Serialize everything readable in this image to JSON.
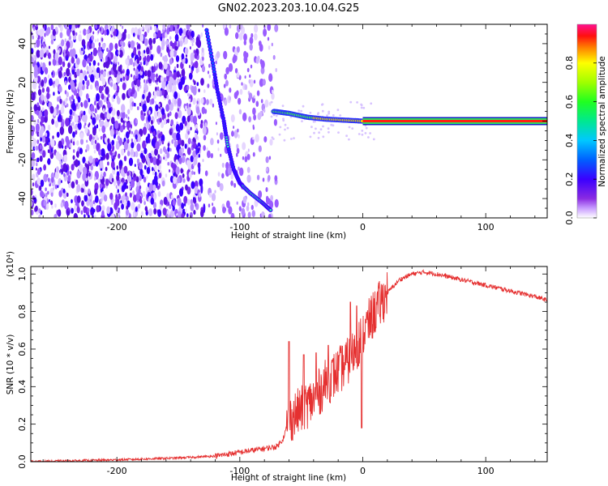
{
  "title": "GN02.2023.203.10.04.G25",
  "chart_data": [
    {
      "type": "heatmap",
      "xlabel": "Height of straight line (km)",
      "ylabel": "Frequency (Hz)",
      "xlim": [
        -270,
        150
      ],
      "ylim": [
        -50,
        50
      ],
      "xticks": [
        -200,
        -100,
        0,
        100
      ],
      "yticks": [
        -40,
        -20,
        0,
        20,
        40
      ],
      "colorbar": {
        "label": "Normalized spectral amplitude",
        "range": [
          0,
          1
        ],
        "ticks": [
          "0.0",
          "0.2",
          "0.4",
          "0.6",
          "0.8"
        ]
      },
      "traces": [
        {
          "description_points": [
            [
              -127,
              47
            ],
            [
              -122,
              30
            ],
            [
              -118,
              15
            ],
            [
              -113,
              0
            ],
            [
              -110,
              -12
            ],
            [
              -105,
              -25
            ],
            [
              -100,
              -32
            ],
            [
              -92,
              -37
            ],
            [
              -82,
              -42
            ],
            [
              -75,
              -46
            ]
          ]
        },
        {
          "description_points": [
            [
              -72,
              5
            ],
            [
              -60,
              4
            ],
            [
              -45,
              2
            ],
            [
              -30,
              1
            ],
            [
              -15,
              0.5
            ],
            [
              0,
              0
            ],
            [
              150,
              0
            ]
          ]
        }
      ],
      "grid": false
    },
    {
      "type": "line",
      "xlabel": "Height of straight line (km)",
      "ylabel": "SNR (10 * v/v)",
      "yscale_label": "(x10⁴)",
      "xlim": [
        -270,
        150
      ],
      "ylim": [
        0,
        1.04
      ],
      "xticks": [
        -200,
        -100,
        0,
        100
      ],
      "yticks": [
        "0.0",
        "0.2",
        "0.4",
        "0.6",
        "0.8",
        "1.0"
      ],
      "series": [
        {
          "color": "#e53030",
          "x": [
            -270,
            -200,
            -150,
            -120,
            -100,
            -90,
            -80,
            -70,
            -65,
            -60,
            -50,
            -40,
            -30,
            -20,
            -10,
            0,
            10,
            20,
            30,
            40,
            50,
            60,
            80,
            100,
            120,
            140,
            150
          ],
          "y": [
            0.0,
            0.01,
            0.02,
            0.03,
            0.05,
            0.06,
            0.07,
            0.08,
            0.12,
            0.22,
            0.28,
            0.33,
            0.42,
            0.48,
            0.55,
            0.68,
            0.8,
            0.9,
            0.97,
            1.0,
            1.01,
            1.0,
            0.97,
            0.94,
            0.91,
            0.88,
            0.86
          ]
        }
      ],
      "spikes": [
        {
          "x": -60,
          "y": 0.64
        },
        {
          "x": -48,
          "y": 0.57
        },
        {
          "x": -38,
          "y": 0.58
        },
        {
          "x": -28,
          "y": 0.62
        },
        {
          "x": -10,
          "y": 0.85
        },
        {
          "x": -5,
          "y": 0.83
        }
      ],
      "grid": false
    }
  ]
}
